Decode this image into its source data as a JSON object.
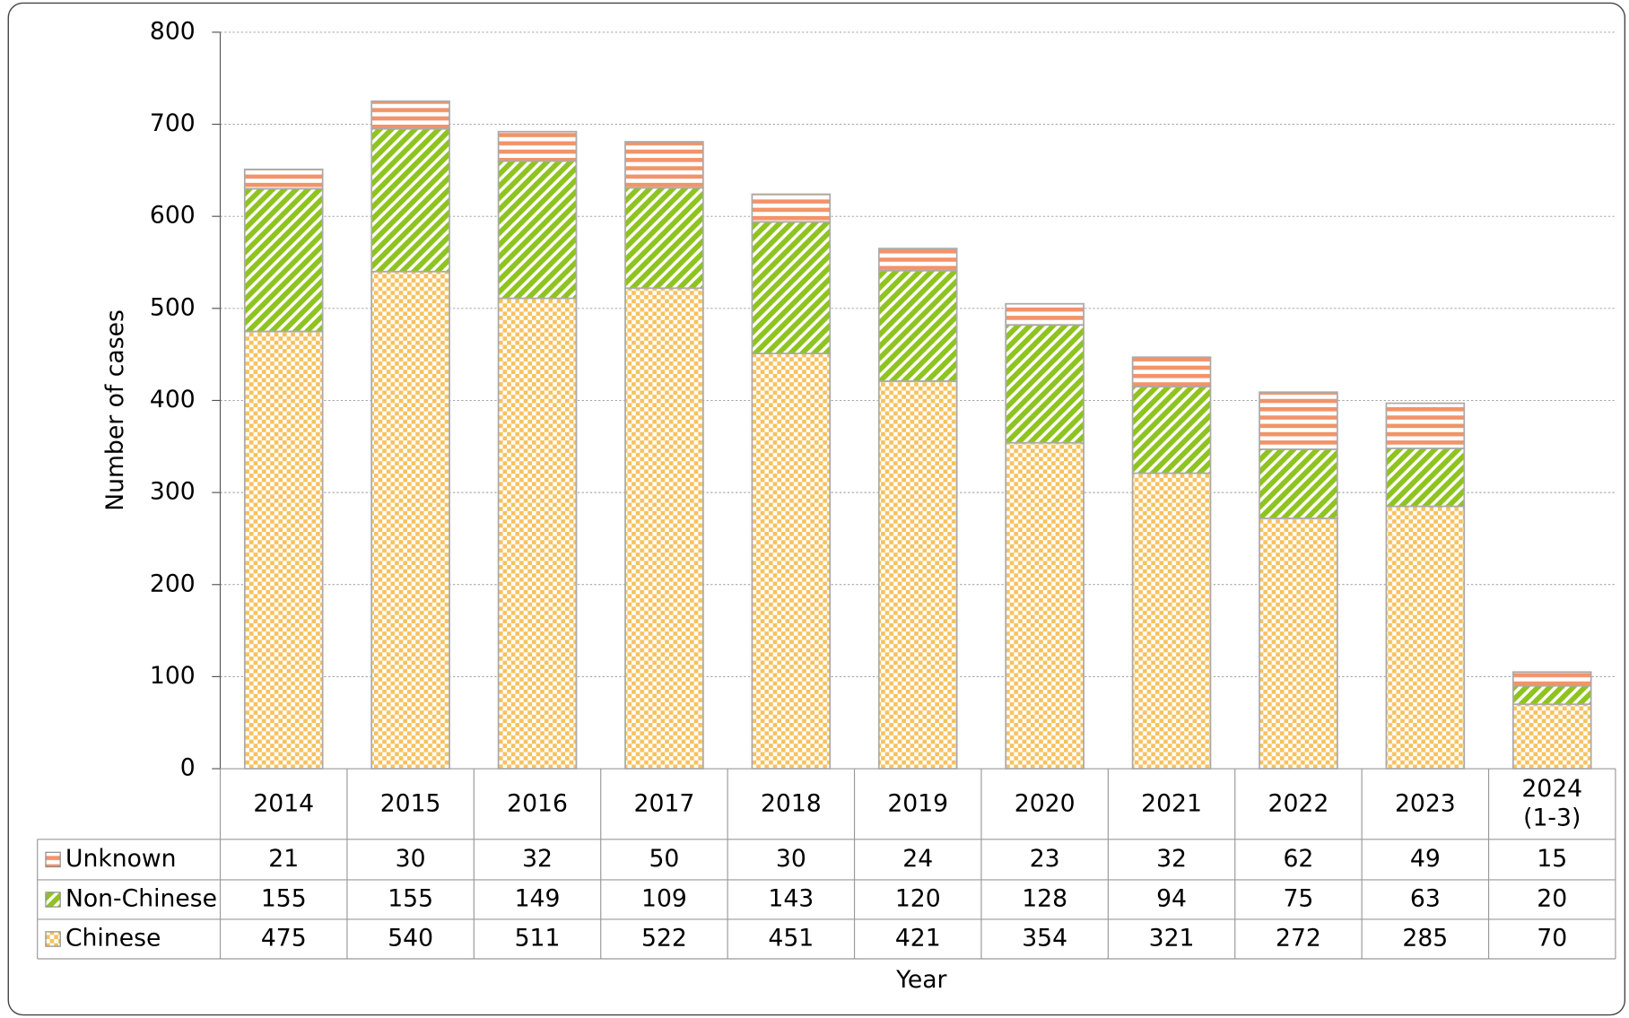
{
  "chart_data": {
    "type": "bar",
    "stacked": true,
    "categories": [
      "2014",
      "2015",
      "2016",
      "2017",
      "2018",
      "2019",
      "2020",
      "2021",
      "2022",
      "2023",
      "2024\n(1-3)"
    ],
    "series": [
      {
        "name": "Chinese",
        "color": "#f7c15c",
        "values": [
          475,
          540,
          511,
          522,
          451,
          421,
          354,
          321,
          272,
          285,
          70
        ]
      },
      {
        "name": "Non-Chinese",
        "color": "#8fc31f",
        "values": [
          155,
          155,
          149,
          109,
          143,
          120,
          128,
          94,
          75,
          63,
          20
        ]
      },
      {
        "name": "Unknown",
        "color": "#f2936a",
        "values": [
          21,
          30,
          32,
          50,
          30,
          24,
          23,
          32,
          62,
          49,
          15
        ]
      }
    ],
    "ylabel": "Number of cases",
    "xlabel": "Year",
    "ylim": [
      0,
      800
    ],
    "yticks": [
      0,
      100,
      200,
      300,
      400,
      500,
      600,
      700,
      800
    ],
    "grid": true
  }
}
